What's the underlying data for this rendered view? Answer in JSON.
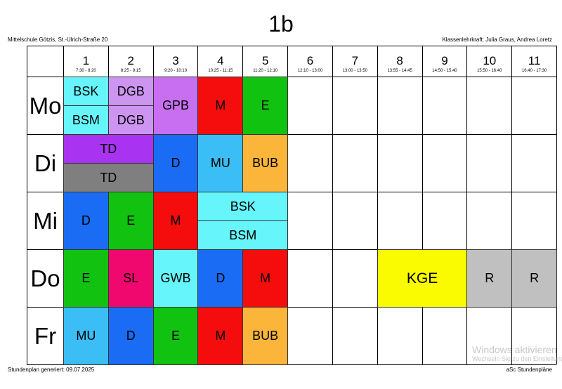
{
  "title": "1b",
  "school": "Mittelschule Götzis, St.-Ulrich-Straße 20",
  "teacher": "Klassenlehrkraft: Julia Graus, Andrea Loretz",
  "footer_generated": "Stundenplan generiert: 09.07.2025",
  "footer_brand": "aSc Stundenpläne",
  "watermark": {
    "title": "Windows aktivieren",
    "sub": "Wechseln Sie zu den Einstellungen, um Windows zu aktivieren."
  },
  "periods": [
    {
      "num": "1",
      "time": "7:30 - 8:20"
    },
    {
      "num": "2",
      "time": "8:25 - 9:15"
    },
    {
      "num": "3",
      "time": "9:20 - 10:10"
    },
    {
      "num": "4",
      "time": "10:25 - 11:15"
    },
    {
      "num": "5",
      "time": "11:20 - 12:10"
    },
    {
      "num": "6",
      "time": "12:10 - 13:00"
    },
    {
      "num": "7",
      "time": "13:00 - 13:50"
    },
    {
      "num": "8",
      "time": "13:55 - 14:45"
    },
    {
      "num": "9",
      "time": "14:50 - 15:40"
    },
    {
      "num": "10",
      "time": "15:50 - 16:40"
    },
    {
      "num": "11",
      "time": "16:40 - 17:30"
    }
  ],
  "days": [
    "Mo",
    "Di",
    "Mi",
    "Do",
    "Fr"
  ],
  "colors": {
    "cyan": "#66f5fa",
    "lavender": "#cd94f2",
    "violet": "#c76ff0",
    "purple": "#a833f0",
    "gray": "#7f7f7f",
    "red": "#f50c0c",
    "green": "#11c210",
    "blue": "#1a6cf5",
    "skyblue": "#3bbdf5",
    "orange": "#fbb53a",
    "pink": "#f0086e",
    "yellow": "#fafa00",
    "lightgray": "#c0c0c0"
  },
  "lessons": [
    {
      "day": 0,
      "start": 1,
      "span": 1,
      "part": 1,
      "parts": 2,
      "subject": "BSK",
      "color": "cyan"
    },
    {
      "day": 0,
      "start": 1,
      "span": 1,
      "part": 2,
      "parts": 2,
      "subject": "BSM",
      "color": "cyan"
    },
    {
      "day": 0,
      "start": 2,
      "span": 1,
      "part": 1,
      "parts": 2,
      "subject": "DGB",
      "color": "lavender"
    },
    {
      "day": 0,
      "start": 2,
      "span": 1,
      "part": 2,
      "parts": 2,
      "subject": "DGB",
      "color": "lavender"
    },
    {
      "day": 0,
      "start": 3,
      "span": 1,
      "part": 1,
      "parts": 1,
      "subject": "GPB",
      "color": "violet"
    },
    {
      "day": 0,
      "start": 4,
      "span": 1,
      "part": 1,
      "parts": 1,
      "subject": "M",
      "color": "red"
    },
    {
      "day": 0,
      "start": 5,
      "span": 1,
      "part": 1,
      "parts": 1,
      "subject": "E",
      "color": "green"
    },
    {
      "day": 1,
      "start": 1,
      "span": 2,
      "part": 1,
      "parts": 2,
      "subject": "TD",
      "color": "purple"
    },
    {
      "day": 1,
      "start": 1,
      "span": 2,
      "part": 2,
      "parts": 2,
      "subject": "TD",
      "color": "gray"
    },
    {
      "day": 1,
      "start": 3,
      "span": 1,
      "part": 1,
      "parts": 1,
      "subject": "D",
      "color": "blue"
    },
    {
      "day": 1,
      "start": 4,
      "span": 1,
      "part": 1,
      "parts": 1,
      "subject": "MU",
      "color": "skyblue"
    },
    {
      "day": 1,
      "start": 5,
      "span": 1,
      "part": 1,
      "parts": 1,
      "subject": "BUB",
      "color": "orange"
    },
    {
      "day": 2,
      "start": 1,
      "span": 1,
      "part": 1,
      "parts": 1,
      "subject": "D",
      "color": "blue"
    },
    {
      "day": 2,
      "start": 2,
      "span": 1,
      "part": 1,
      "parts": 1,
      "subject": "E",
      "color": "green"
    },
    {
      "day": 2,
      "start": 3,
      "span": 1,
      "part": 1,
      "parts": 1,
      "subject": "M",
      "color": "red"
    },
    {
      "day": 2,
      "start": 4,
      "span": 2,
      "part": 1,
      "parts": 2,
      "subject": "BSK",
      "color": "cyan"
    },
    {
      "day": 2,
      "start": 4,
      "span": 2,
      "part": 2,
      "parts": 2,
      "subject": "BSM",
      "color": "cyan"
    },
    {
      "day": 3,
      "start": 1,
      "span": 1,
      "part": 1,
      "parts": 1,
      "subject": "E",
      "color": "green"
    },
    {
      "day": 3,
      "start": 2,
      "span": 1,
      "part": 1,
      "parts": 1,
      "subject": "SL",
      "color": "pink"
    },
    {
      "day": 3,
      "start": 3,
      "span": 1,
      "part": 1,
      "parts": 1,
      "subject": "GWB",
      "color": "cyan"
    },
    {
      "day": 3,
      "start": 4,
      "span": 1,
      "part": 1,
      "parts": 1,
      "subject": "D",
      "color": "blue"
    },
    {
      "day": 3,
      "start": 5,
      "span": 1,
      "part": 1,
      "parts": 1,
      "subject": "M",
      "color": "red"
    },
    {
      "day": 3,
      "start": 8,
      "span": 2,
      "part": 1,
      "parts": 1,
      "subject": "KGE",
      "color": "yellow"
    },
    {
      "day": 3,
      "start": 10,
      "span": 1,
      "part": 1,
      "parts": 1,
      "subject": "R",
      "color": "lightgray"
    },
    {
      "day": 3,
      "start": 11,
      "span": 1,
      "part": 1,
      "parts": 1,
      "subject": "R",
      "color": "lightgray"
    },
    {
      "day": 4,
      "start": 1,
      "span": 1,
      "part": 1,
      "parts": 1,
      "subject": "MU",
      "color": "skyblue"
    },
    {
      "day": 4,
      "start": 2,
      "span": 1,
      "part": 1,
      "parts": 1,
      "subject": "D",
      "color": "blue"
    },
    {
      "day": 4,
      "start": 3,
      "span": 1,
      "part": 1,
      "parts": 1,
      "subject": "E",
      "color": "green"
    },
    {
      "day": 4,
      "start": 4,
      "span": 1,
      "part": 1,
      "parts": 1,
      "subject": "M",
      "color": "red"
    },
    {
      "day": 4,
      "start": 5,
      "span": 1,
      "part": 1,
      "parts": 1,
      "subject": "BUB",
      "color": "orange"
    }
  ]
}
